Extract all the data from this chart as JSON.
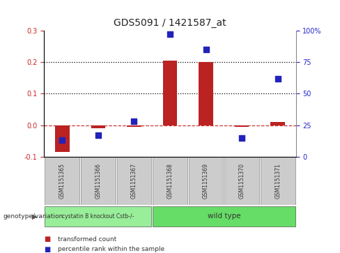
{
  "title": "GDS5091 / 1421587_at",
  "samples": [
    "GSM1151365",
    "GSM1151366",
    "GSM1151367",
    "GSM1151368",
    "GSM1151369",
    "GSM1151370",
    "GSM1151371"
  ],
  "transformed_count": [
    -0.085,
    -0.01,
    -0.005,
    0.205,
    0.2,
    -0.005,
    0.01
  ],
  "percentile_rank": [
    13,
    17,
    28,
    97,
    85,
    15,
    62
  ],
  "ylim_left": [
    -0.1,
    0.3
  ],
  "ylim_right": [
    0,
    100
  ],
  "yticks_left": [
    -0.1,
    0.0,
    0.1,
    0.2,
    0.3
  ],
  "yticks_right": [
    0,
    25,
    50,
    75,
    100
  ],
  "ytick_labels_right": [
    "0",
    "25",
    "50",
    "75",
    "100%"
  ],
  "hlines": [
    0.1,
    0.2
  ],
  "bar_color": "#bb2222",
  "dot_color": "#2222bb",
  "dashed_line_color": "#cc3333",
  "grid_color": "#000000",
  "group1_label": "cystatin B knockout Cstb-/-",
  "group2_label": "wild type",
  "group1_count": 3,
  "group2_count": 4,
  "group1_color": "#99ee99",
  "group2_color": "#66dd66",
  "legend_red_label": "transformed count",
  "legend_blue_label": "percentile rank within the sample",
  "bg_color": "#ffffff",
  "sample_box_color": "#cccccc",
  "sample_box_edge": "#888888",
  "left_yaxis_color": "#cc2222",
  "right_yaxis_color": "#2222cc"
}
